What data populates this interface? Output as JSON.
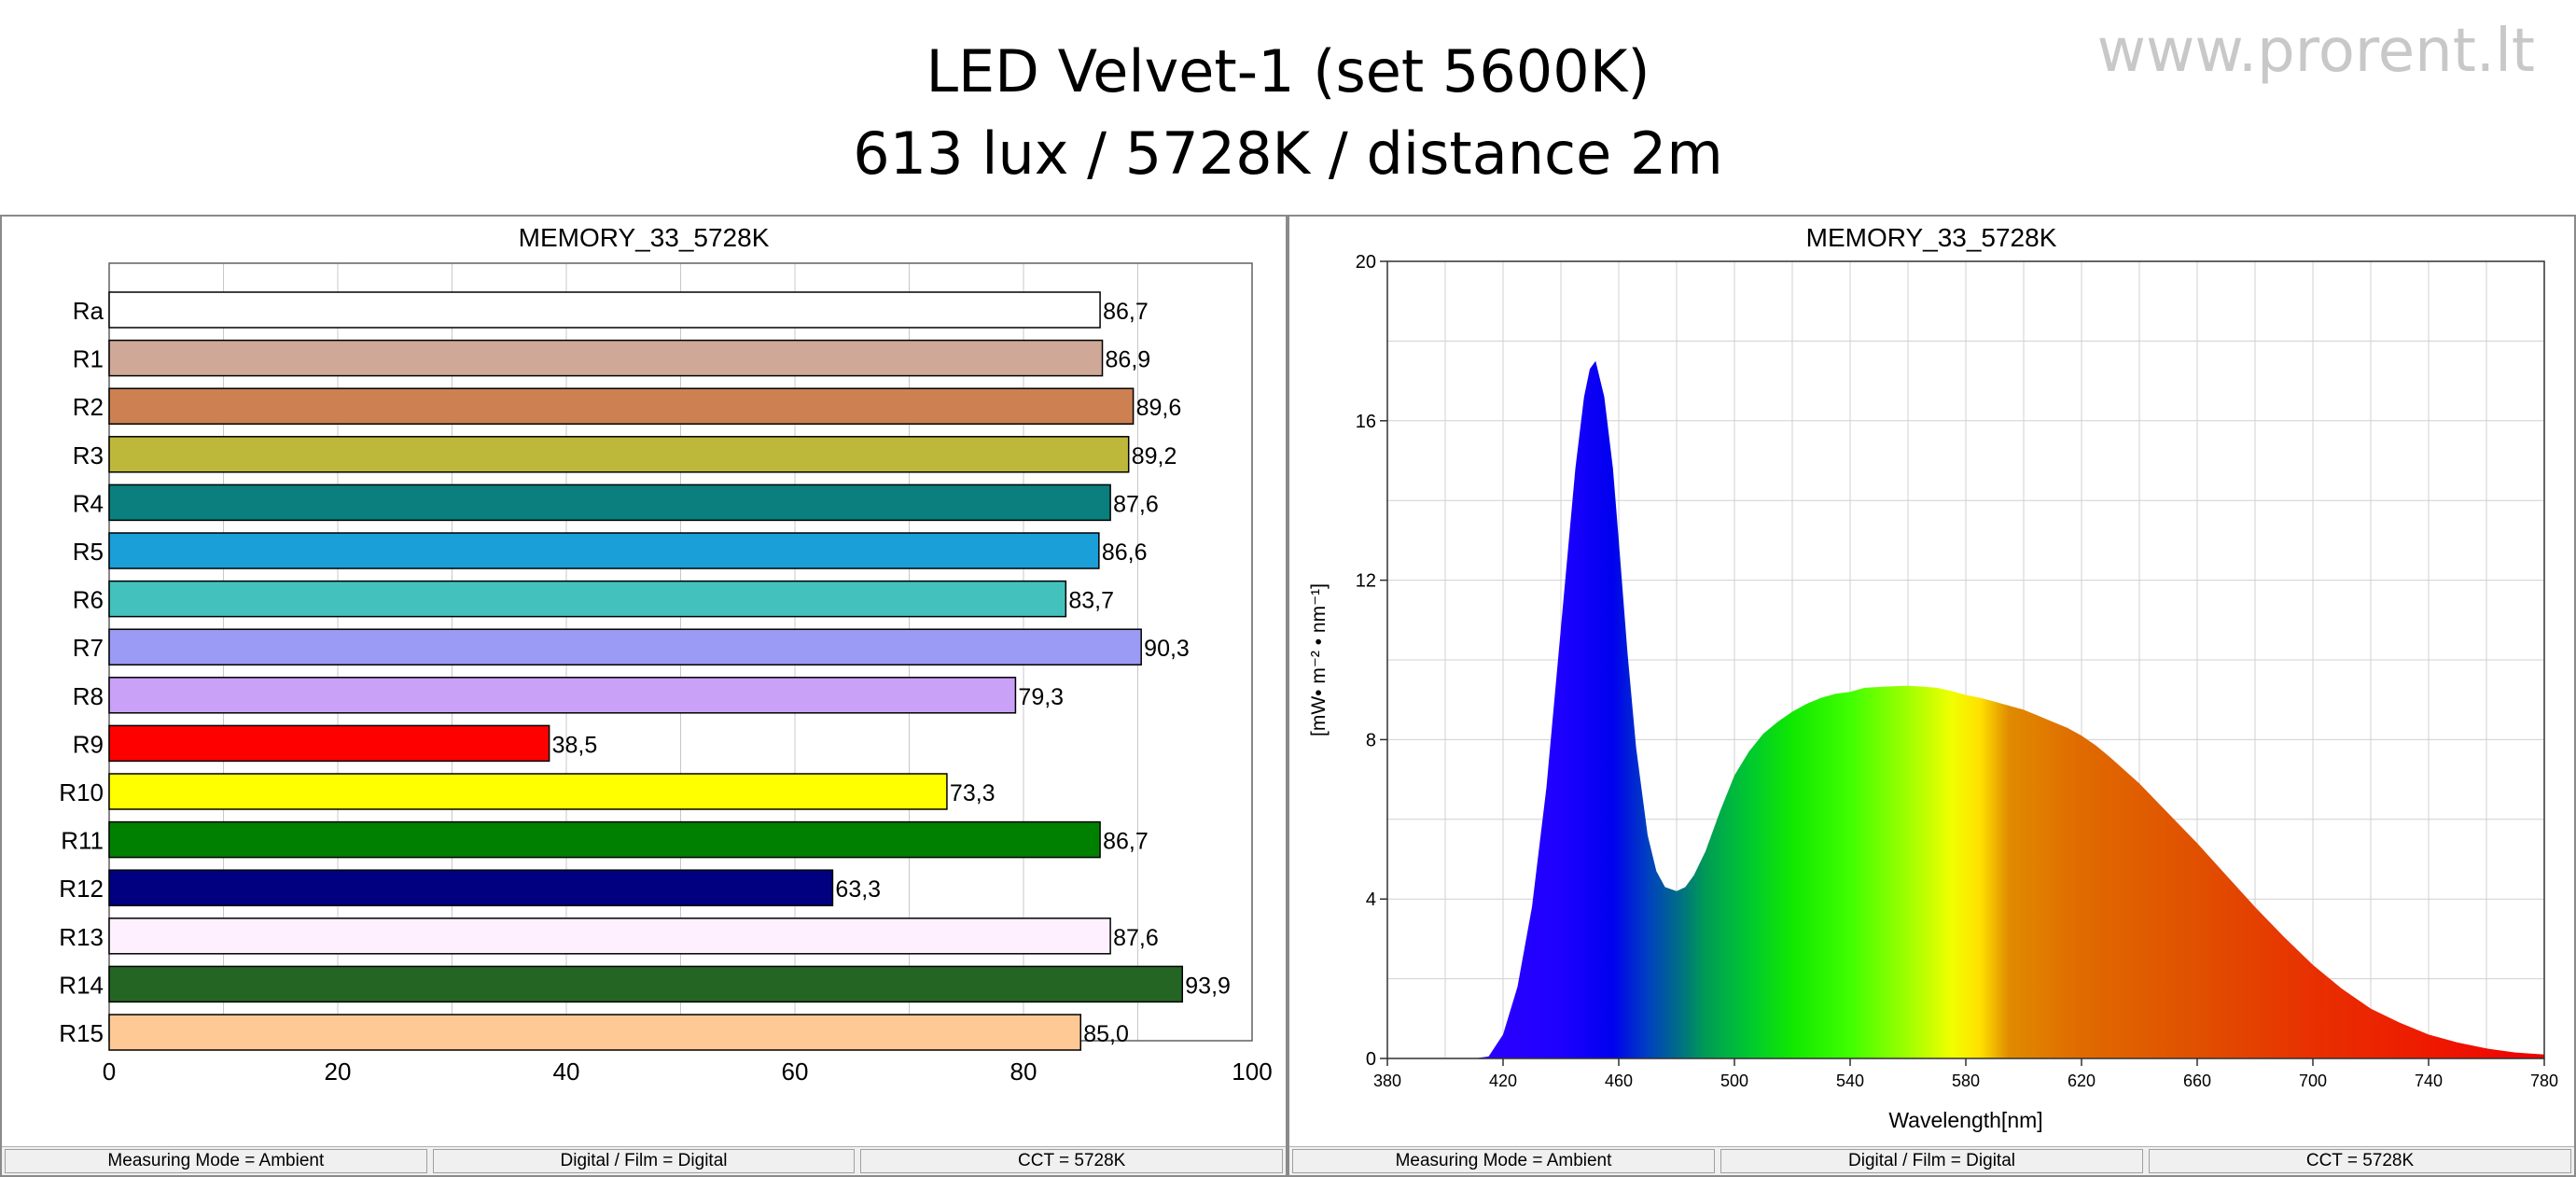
{
  "header": {
    "title_line1": "LED Velvet-1 (set 5600K)",
    "title_line2": "613 lux / 5728K / distance 2m",
    "watermark": "www.prorent.lt"
  },
  "left_panel": {
    "status": [
      "Measuring Mode = Ambient",
      "Digital / Film = Digital",
      "CCT = 5728K"
    ]
  },
  "right_panel": {
    "status": [
      "Measuring Mode = Ambient",
      "Digital / Film = Digital",
      "CCT = 5728K"
    ]
  },
  "chart_data": [
    {
      "type": "bar",
      "orientation": "horizontal",
      "title": "MEMORY_33_5728K",
      "categories": [
        "Ra",
        "R1",
        "R2",
        "R3",
        "R4",
        "R5",
        "R6",
        "R7",
        "R8",
        "R9",
        "R10",
        "R11",
        "R12",
        "R13",
        "R14",
        "R15"
      ],
      "values": [
        86.7,
        86.9,
        89.6,
        89.2,
        87.6,
        86.6,
        83.7,
        90.3,
        79.3,
        38.5,
        73.3,
        86.7,
        63.3,
        87.6,
        93.9,
        85.0
      ],
      "value_labels": [
        "86,7",
        "86,9",
        "89,6",
        "89,2",
        "87,6",
        "86,6",
        "83,7",
        "90,3",
        "79,3",
        "38,5",
        "73,3",
        "86,7",
        "63,3",
        "87,6",
        "93,9",
        "85,0"
      ],
      "colors": [
        "#ffffff",
        "#cfa898",
        "#cd8052",
        "#bdb83a",
        "#0b7f7d",
        "#1a9fd9",
        "#43c2bd",
        "#9b9bf5",
        "#c9a1f7",
        "#ff0000",
        "#ffff00",
        "#008000",
        "#000080",
        "#fff0ff",
        "#246524",
        "#ffc996"
      ],
      "xlim": [
        0,
        100
      ],
      "xticks": [
        0,
        20,
        40,
        60,
        80,
        100
      ],
      "grid": true,
      "legend": "none"
    },
    {
      "type": "area",
      "title": "MEMORY_33_5728K",
      "xlabel": "Wavelength[nm]",
      "ylabel": "[mW• m⁻² • nm⁻¹]",
      "xlim": [
        380,
        780
      ],
      "ylim": [
        0,
        20
      ],
      "xticks": [
        380,
        420,
        460,
        500,
        540,
        580,
        620,
        660,
        700,
        740,
        780
      ],
      "yticks": [
        0,
        4,
        8,
        12,
        16,
        20
      ],
      "fill": "visible-spectrum-gradient",
      "grid": true,
      "x": [
        380,
        400,
        410,
        415,
        420,
        425,
        430,
        435,
        440,
        445,
        448,
        450,
        452,
        455,
        458,
        460,
        463,
        466,
        470,
        473,
        476,
        480,
        483,
        486,
        490,
        495,
        500,
        505,
        510,
        515,
        520,
        525,
        530,
        535,
        540,
        545,
        550,
        555,
        560,
        565,
        570,
        575,
        580,
        585,
        590,
        595,
        600,
        605,
        610,
        615,
        620,
        625,
        630,
        640,
        650,
        660,
        670,
        680,
        690,
        700,
        710,
        720,
        730,
        740,
        750,
        760,
        770,
        780
      ],
      "y": [
        0,
        0,
        0,
        0.05,
        0.6,
        1.8,
        3.8,
        6.8,
        10.8,
        14.8,
        16.6,
        17.3,
        17.5,
        16.6,
        14.8,
        13.0,
        10.2,
        7.8,
        5.6,
        4.7,
        4.3,
        4.2,
        4.3,
        4.6,
        5.2,
        6.2,
        7.1,
        7.7,
        8.15,
        8.45,
        8.7,
        8.9,
        9.05,
        9.15,
        9.2,
        9.3,
        9.32,
        9.34,
        9.35,
        9.33,
        9.3,
        9.22,
        9.12,
        9.05,
        8.95,
        8.85,
        8.75,
        8.6,
        8.45,
        8.3,
        8.1,
        7.85,
        7.55,
        6.9,
        6.15,
        5.4,
        4.6,
        3.8,
        3.05,
        2.35,
        1.75,
        1.25,
        0.9,
        0.6,
        0.4,
        0.25,
        0.15,
        0.1
      ]
    }
  ]
}
